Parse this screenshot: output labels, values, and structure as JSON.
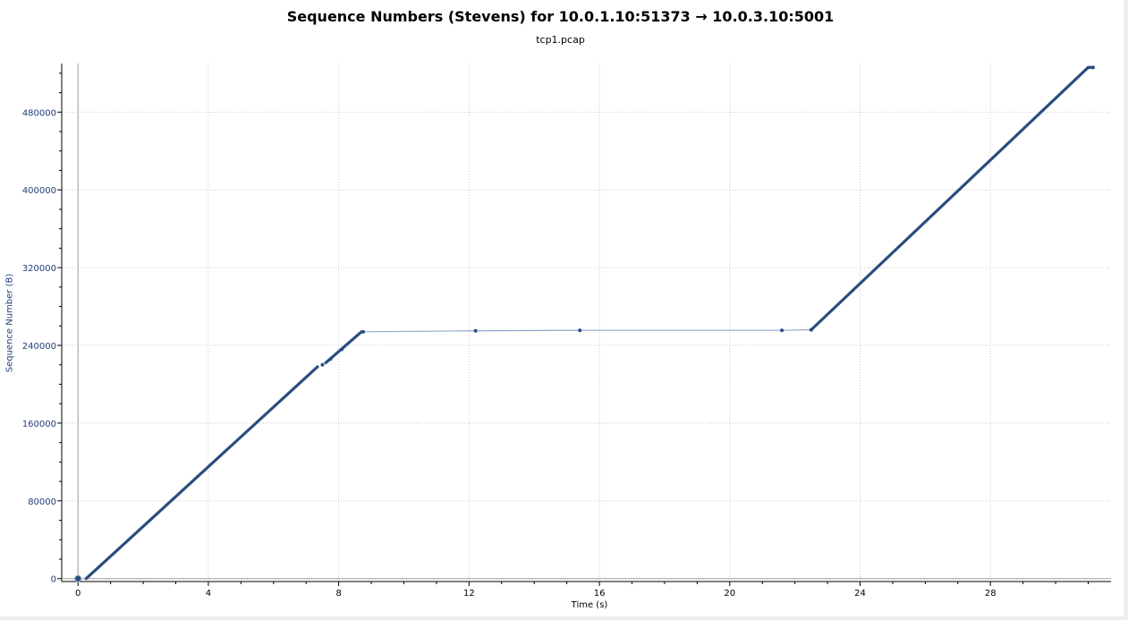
{
  "chart_data": {
    "type": "scatter",
    "title": "Sequence Numbers (Stevens) for 10.0.1.10:51373 → 10.0.3.10:5001",
    "subtitle": "tcp1.pcap",
    "xlabel": "Time (s)",
    "ylabel": "Sequence Number (B)",
    "xlim": [
      -0.5,
      31.7
    ],
    "ylim": [
      -3000,
      530000
    ],
    "x_ticks": [
      0,
      4,
      8,
      12,
      16,
      20,
      24,
      28
    ],
    "y_ticks": [
      0,
      80000,
      160000,
      240000,
      320000,
      400000,
      480000
    ],
    "grid": true,
    "colors": {
      "series": "#2a4d7f",
      "gap_line": "#8fa8c8",
      "grid": "#c8c8c8"
    },
    "series": [
      {
        "style": "dense",
        "segments": [
          {
            "x": [
              0.25,
              7.35
            ],
            "y": [
              0,
              218000
            ]
          },
          {
            "x": [
              7.6,
              8.7
            ],
            "y": [
              222000,
              254000
            ]
          },
          {
            "x": [
              22.5,
              31.0
            ],
            "y": [
              256000,
              526000
            ]
          },
          {
            "x": [
              31.0,
              31.15
            ],
            "y": [
              526000,
              526000
            ]
          }
        ]
      },
      {
        "style": "sparse",
        "points": [
          {
            "x": 0,
            "y": 0
          },
          {
            "x": 7.5,
            "y": 220000
          },
          {
            "x": 7.75,
            "y": 226000
          },
          {
            "x": 8.1,
            "y": 236000
          },
          {
            "x": 8.75,
            "y": 254000
          },
          {
            "x": 12.2,
            "y": 255000
          },
          {
            "x": 15.4,
            "y": 255500
          },
          {
            "x": 21.6,
            "y": 255500
          },
          {
            "x": 22.5,
            "y": 256000
          },
          {
            "x": 31.15,
            "y": 526000
          }
        ]
      }
    ]
  }
}
